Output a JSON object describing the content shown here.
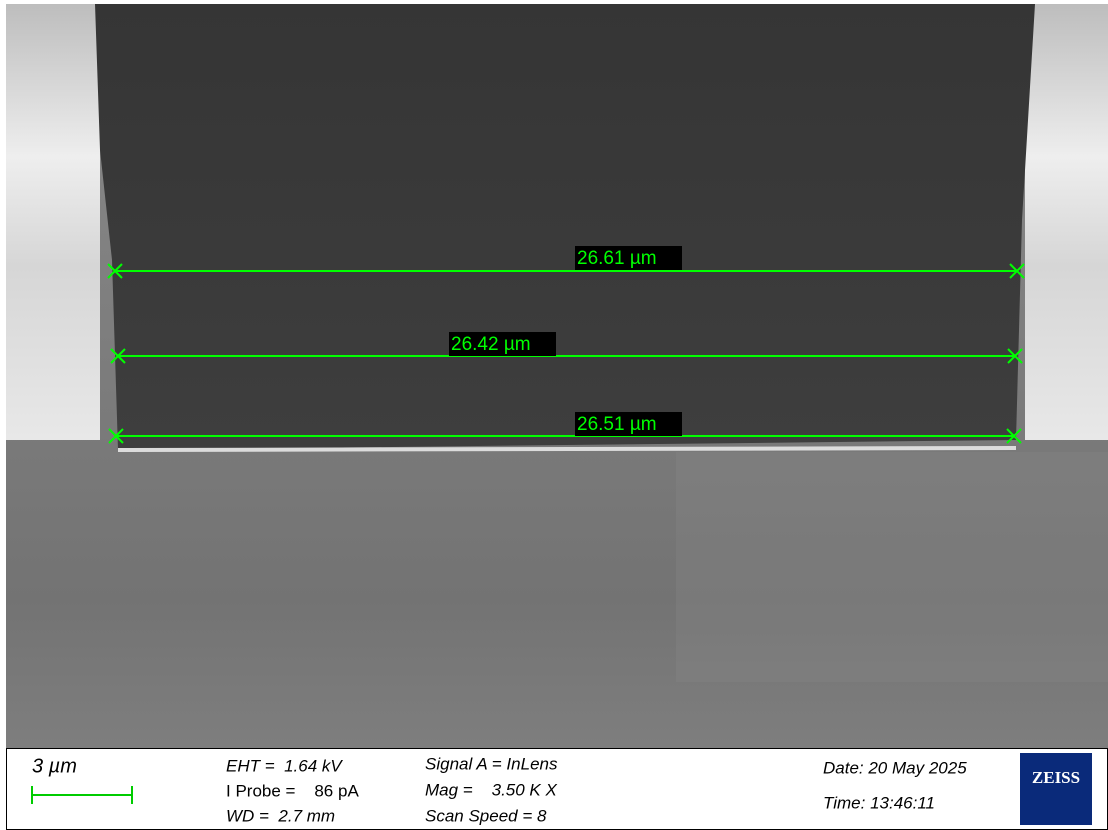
{
  "measurements": [
    {
      "label": "26.61 µm"
    },
    {
      "label": "26.42 µm"
    },
    {
      "label": "26.51 µm"
    }
  ],
  "info_bar": {
    "scale_bar": "3 µm",
    "eht": "EHT =  1.64 kV",
    "i_probe": "I Probe =    86 pA",
    "wd": "WD =  2.7 mm",
    "signal": "Signal A = InLens",
    "mag": "Mag =    3.50 K X",
    "scan_speed": "Scan Speed = 8",
    "date": "Date: 20 May 2025",
    "time": "Time: 13:46:11",
    "logo": "ZEISS"
  }
}
